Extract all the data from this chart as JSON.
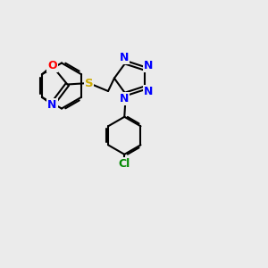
{
  "background_color": "#ebebeb",
  "bond_color": "#000000",
  "atom_colors": {
    "N": "#0000ff",
    "O": "#ff0000",
    "S": "#ccaa00",
    "Cl": "#008800",
    "C": "#000000"
  },
  "figsize": [
    3.0,
    3.0
  ],
  "dpi": 100
}
